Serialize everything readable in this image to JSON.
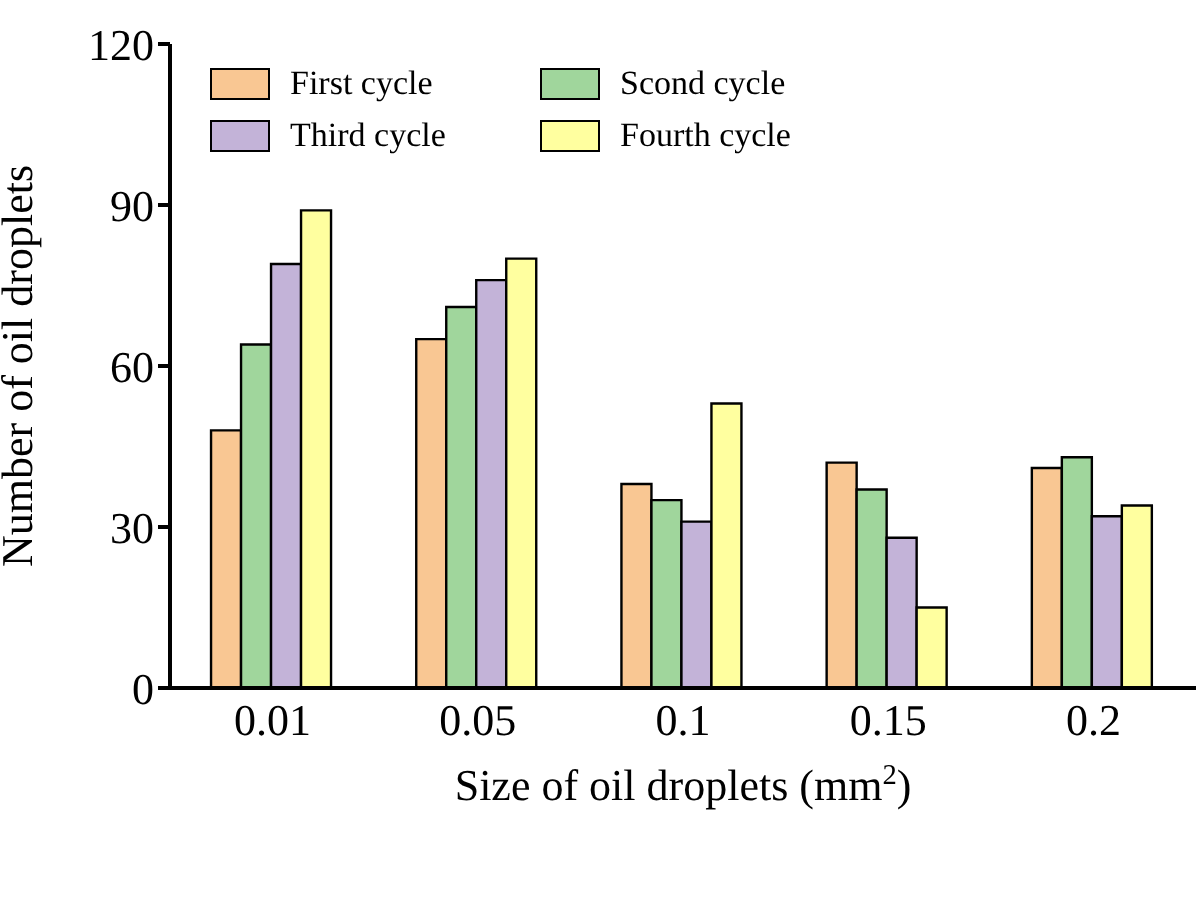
{
  "chart_data": {
    "type": "bar",
    "xlabel": "Size of oil droplets (mm$^{2}$)",
    "ylabel": "Number of oil droplets",
    "categories": [
      "0.01",
      "0.05",
      "0.1",
      "0.15",
      "0.2"
    ],
    "series": [
      {
        "name": "First cycle",
        "color": "#f9c793",
        "values": [
          48,
          65,
          38,
          42,
          41
        ]
      },
      {
        "name": "Scond cycle",
        "color": "#a0d69c",
        "values": [
          64,
          71,
          35,
          37,
          43
        ]
      },
      {
        "name": "Third cycle",
        "color": "#c3b3d8",
        "values": [
          79,
          76,
          31,
          28,
          32
        ]
      },
      {
        "name": "Fourth cycle",
        "color": "#ffff9f",
        "values": [
          89,
          80,
          53,
          15,
          34
        ]
      }
    ],
    "ylim": [
      0,
      120
    ],
    "yticks": [
      0,
      30,
      60,
      90,
      120
    ],
    "legend": "top left"
  }
}
